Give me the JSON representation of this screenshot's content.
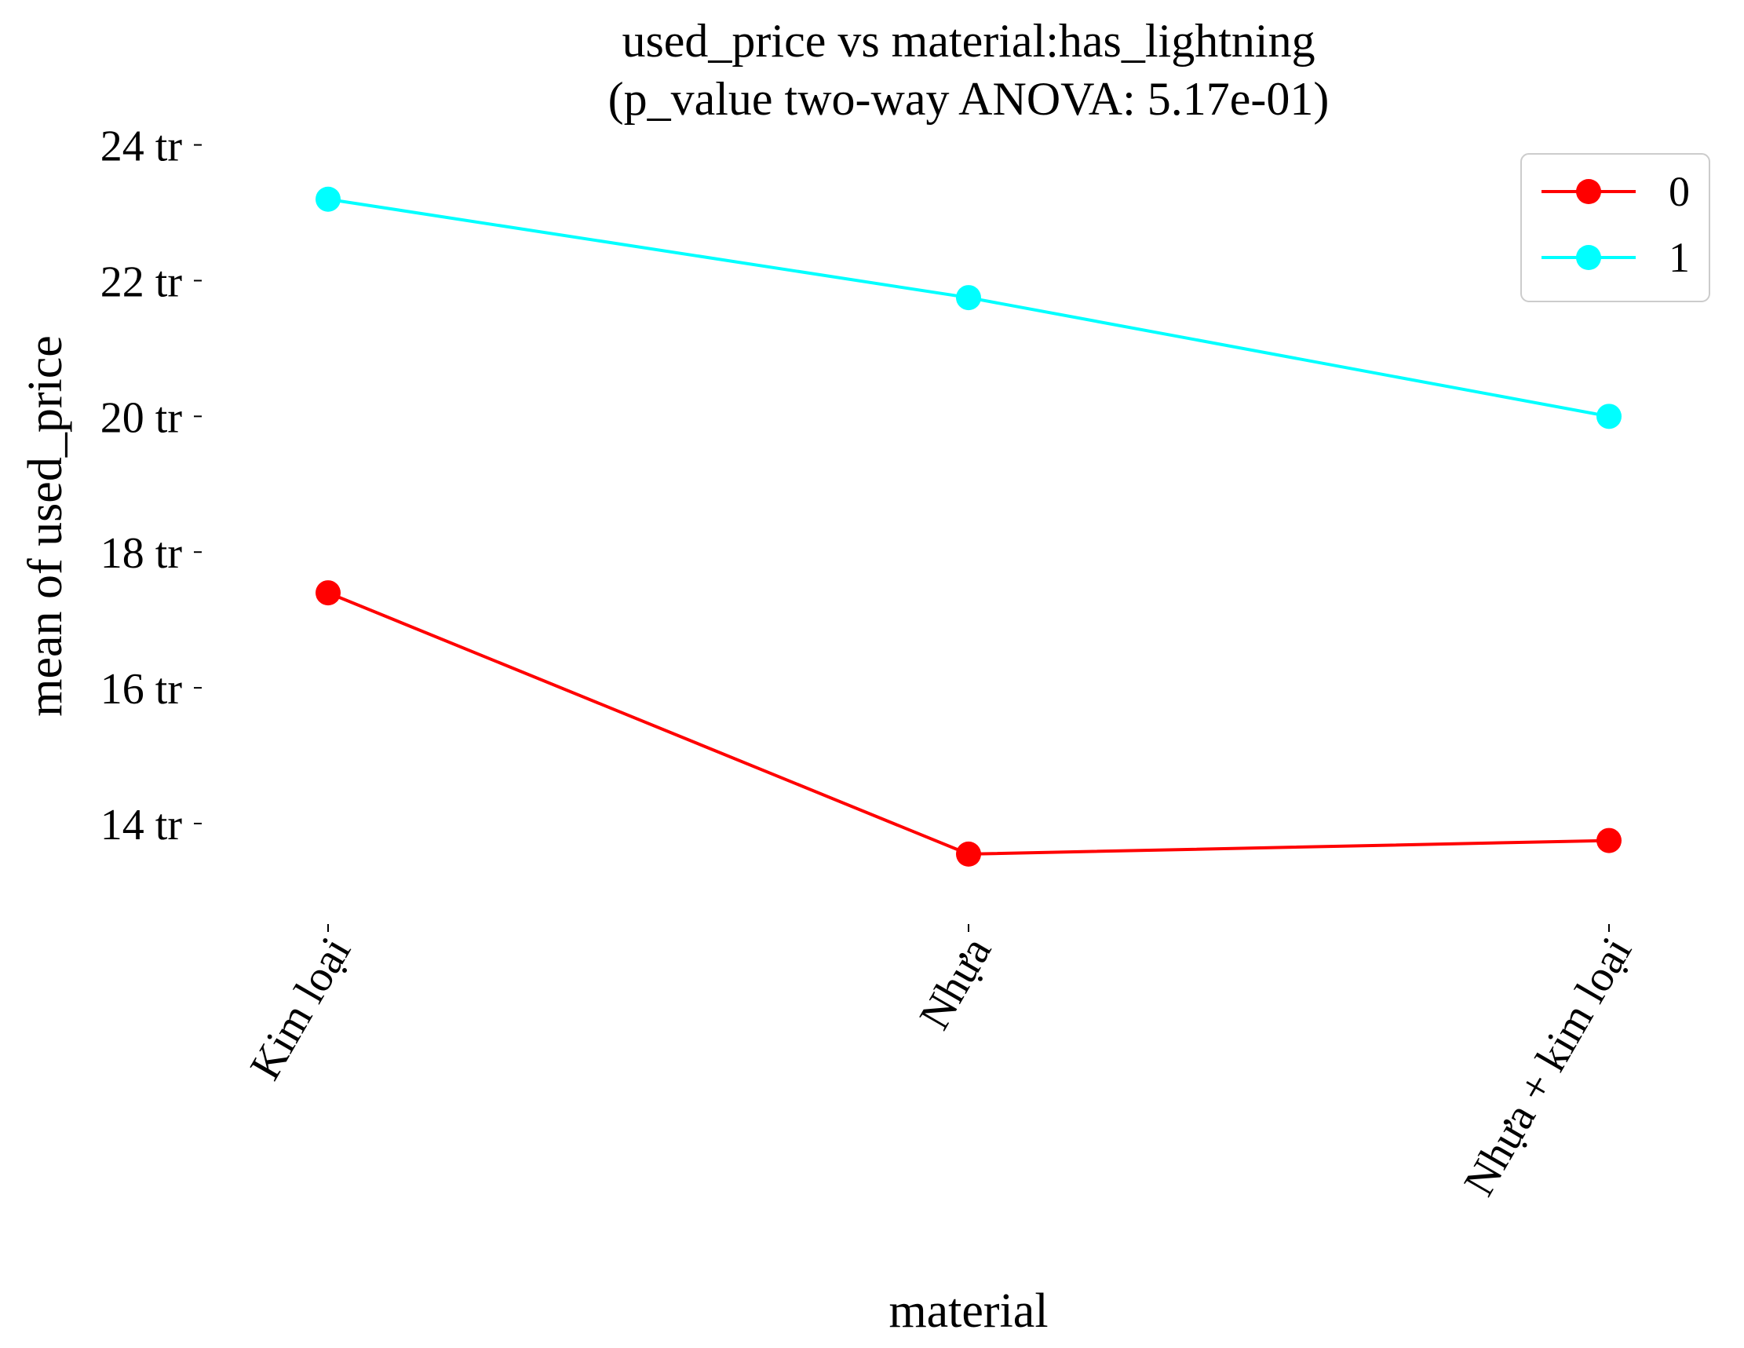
{
  "chart_data": {
    "type": "line",
    "title": "used_price vs material:has_lightning",
    "subtitle": "(p_value two-way ANOVA: 5.17e-01)",
    "xlabel": "material",
    "ylabel": "mean of used_price",
    "categories": [
      "Kim loại",
      "Nhựa",
      "Nhựa + kim loại"
    ],
    "series": [
      {
        "name": "0",
        "color": "#ff0000",
        "values": [
          17.4,
          13.55,
          13.75
        ]
      },
      {
        "name": "1",
        "color": "#00ffff",
        "values": [
          23.2,
          21.75,
          20.0
        ]
      }
    ],
    "ylim": [
      12.6,
      24.4
    ],
    "yticks": [
      14,
      16,
      18,
      20,
      22,
      24
    ],
    "ytick_labels": [
      "14 tr",
      "16 tr",
      "18 tr",
      "20 tr",
      "22 tr",
      "24 tr"
    ],
    "legend_position": "top-right",
    "grid": false
  }
}
